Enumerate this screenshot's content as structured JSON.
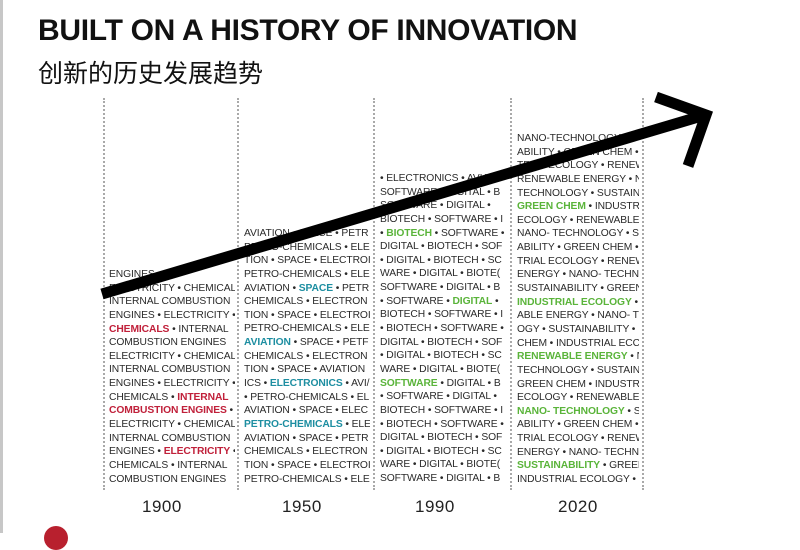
{
  "title": "BUILT ON A HISTORY OF INNOVATION",
  "subtitle": "创新的历史发展趋势",
  "years": [
    "1900",
    "1950",
    "1990",
    "2020"
  ],
  "colors": {
    "red": "#c0203a",
    "teal": "#1d8ea1",
    "green": "#5ab43a",
    "text": "#2a2a2a"
  },
  "columns": [
    {
      "lines": [
        [
          {
            "t": "ENGINES"
          }
        ],
        [
          {
            "t": "ELECTRICITY • CHEMICAL"
          }
        ],
        [
          {
            "t": "INTERNAL COMBUSTION"
          }
        ],
        [
          {
            "t": "ENGINES • ELECTRICITY •"
          }
        ],
        [
          {
            "t": "CHEMICALS",
            "h": "red"
          },
          {
            "t": " • INTERNAL"
          }
        ],
        [
          {
            "t": "COMBUSTION ENGINES"
          }
        ],
        [
          {
            "t": "ELECTRICITY • CHEMICAL"
          }
        ],
        [
          {
            "t": "INTERNAL COMBUSTION"
          }
        ],
        [
          {
            "t": "ENGINES • ELECTRICITY •"
          }
        ],
        [
          {
            "t": "CHEMICALS • "
          },
          {
            "t": "INTERNAL",
            "h": "red"
          }
        ],
        [
          {
            "t": "COMBUSTION ENGINES",
            "h": "red"
          },
          {
            "t": " •"
          }
        ],
        [
          {
            "t": "ELECTRICITY • CHEMICAL"
          }
        ],
        [
          {
            "t": "INTERNAL COMBUSTION"
          }
        ],
        [
          {
            "t": "ENGINES • "
          },
          {
            "t": "ELECTRICITY",
            "h": "red"
          },
          {
            "t": " •"
          }
        ],
        [
          {
            "t": "CHEMICALS • INTERNAL"
          }
        ],
        [
          {
            "t": "COMBUSTION ENGINES"
          }
        ]
      ]
    },
    {
      "lines": [
        [
          {
            "t": "AVIATION • SPACE • PETR"
          }
        ],
        [
          {
            "t": "PETRO-CHEMICALS • ELECTRON"
          }
        ],
        [
          {
            "t": "TION • SPACE • ELECTROI"
          }
        ],
        [
          {
            "t": "PETRO-CHEMICALS • ELE"
          }
        ],
        [
          {
            "t": "AVIATION • "
          },
          {
            "t": "SPACE",
            "h": "teal"
          },
          {
            "t": " • PETR"
          }
        ],
        [
          {
            "t": "CHEMICALS • ELECTRON"
          }
        ],
        [
          {
            "t": "TION • SPACE • ELECTROI"
          }
        ],
        [
          {
            "t": "PETRO-CHEMICALS • ELE"
          }
        ],
        [
          {
            "t": "AVIATION",
            "h": "teal"
          },
          {
            "t": " • SPACE • PETF"
          }
        ],
        [
          {
            "t": "CHEMICALS • ELECTRON"
          }
        ],
        [
          {
            "t": "TION • SPACE • AVIATION"
          }
        ],
        [
          {
            "t": "ICS • "
          },
          {
            "t": "ELECTRONICS",
            "h": "teal"
          },
          {
            "t": " • AVI/"
          }
        ],
        [
          {
            "t": "• PETRO-CHEMICALS • EL"
          }
        ],
        [
          {
            "t": "AVIATION • SPACE • ELEC"
          }
        ],
        [
          {
            "t": "PETRO-CHEMICALS",
            "h": "teal"
          },
          {
            "t": " • ELE"
          }
        ],
        [
          {
            "t": "AVIATION • SPACE • PETR"
          }
        ],
        [
          {
            "t": "CHEMICALS • ELECTRON"
          }
        ],
        [
          {
            "t": "TION • SPACE • ELECTROI"
          }
        ],
        [
          {
            "t": "PETRO-CHEMICALS • ELE"
          }
        ]
      ]
    },
    {
      "lines": [
        [
          {
            "t": "• ELECTRONICS • AVIAT"
          }
        ],
        [
          {
            "t": "SOFTWARE • DIGITAL • B"
          }
        ],
        [
          {
            "t": "SOFTWARE • DIGITAL •"
          }
        ],
        [
          {
            "t": "BIOTECH • SOFTWARE • I"
          }
        ],
        [
          {
            "t": "• "
          },
          {
            "t": "BIOTECH",
            "h": "green"
          },
          {
            "t": " • SOFTWARE •"
          }
        ],
        [
          {
            "t": "DIGITAL • BIOTECH • SOF"
          }
        ],
        [
          {
            "t": "• DIGITAL • BIOTECH • SC"
          }
        ],
        [
          {
            "t": "WARE • DIGITAL • BIOTE("
          }
        ],
        [
          {
            "t": "SOFTWARE • DIGITAL • B"
          }
        ],
        [
          {
            "t": "• SOFTWARE • "
          },
          {
            "t": "DIGITAL",
            "h": "green"
          },
          {
            "t": " •"
          }
        ],
        [
          {
            "t": "BIOTECH • SOFTWARE • I"
          }
        ],
        [
          {
            "t": "• BIOTECH • SOFTWARE •"
          }
        ],
        [
          {
            "t": "DIGITAL • BIOTECH • SOF"
          }
        ],
        [
          {
            "t": "• DIGITAL • BIOTECH • SC"
          }
        ],
        [
          {
            "t": "WARE • DIGITAL • BIOTE("
          }
        ],
        [
          {
            "t": "SOFTWARE",
            "h": "green"
          },
          {
            "t": " • DIGITAL • B"
          }
        ],
        [
          {
            "t": "• SOFTWARE • DIGITAL •"
          }
        ],
        [
          {
            "t": "BIOTECH • SOFTWARE • I"
          }
        ],
        [
          {
            "t": "• BIOTECH • SOFTWARE •"
          }
        ],
        [
          {
            "t": "DIGITAL • BIOTECH • SOF"
          }
        ],
        [
          {
            "t": "• DIGITAL • BIOTECH • SC"
          }
        ],
        [
          {
            "t": "WARE • DIGITAL • BIOTE("
          }
        ],
        [
          {
            "t": "SOFTWARE • DIGITAL • B"
          }
        ]
      ]
    },
    {
      "lines": [
        [
          {
            "t": "NANO-TECHNOLOGY •"
          }
        ],
        [
          {
            "t": "ABILITY • GREEN CHEM •"
          }
        ],
        [
          {
            "t": "TRIAL ECOLOGY • RENEWABLE"
          }
        ],
        [
          {
            "t": "RENEWABLE ENERGY • N"
          }
        ],
        [
          {
            "t": "TECHNOLOGY • SUSTAIN"
          }
        ],
        [
          {
            "t": "GREEN CHEM",
            "h": "green"
          },
          {
            "t": " • INDUSTR"
          }
        ],
        [
          {
            "t": "ECOLOGY • RENEWABLE"
          }
        ],
        [
          {
            "t": "NANO- TECHNOLOGY • S"
          }
        ],
        [
          {
            "t": "ABILITY • GREEN CHEM •"
          }
        ],
        [
          {
            "t": "TRIAL ECOLOGY • RENEW"
          }
        ],
        [
          {
            "t": "ENERGY • NANO- TECHN"
          }
        ],
        [
          {
            "t": "SUSTAINABILITY • GREEN"
          }
        ],
        [
          {
            "t": "INDUSTRIAL ECOLOGY",
            "h": "green"
          },
          {
            "t": " • I"
          }
        ],
        [
          {
            "t": "ABLE ENERGY • NANO- T"
          }
        ],
        [
          {
            "t": "OGY • SUSTAINABILITY •"
          }
        ],
        [
          {
            "t": "CHEM • INDUSTRIAL ECC"
          }
        ],
        [
          {
            "t": "RENEWABLE ENERGY",
            "h": "green"
          },
          {
            "t": " • N"
          }
        ],
        [
          {
            "t": "TECHNOLOGY • SUSTAIN"
          }
        ],
        [
          {
            "t": "GREEN CHEM • INDUSTR"
          }
        ],
        [
          {
            "t": "ECOLOGY • RENEWABLE"
          }
        ],
        [
          {
            "t": "NANO- TECHNOLOGY",
            "h": "green"
          },
          {
            "t": " • S"
          }
        ],
        [
          {
            "t": "ABILITY • GREEN CHEM •"
          }
        ],
        [
          {
            "t": "TRIAL ECOLOGY • RENEW"
          }
        ],
        [
          {
            "t": "ENERGY • NANO- TECHN"
          }
        ],
        [
          {
            "t": "SUSTAINABILITY",
            "h": "green"
          },
          {
            "t": " • GREEN"
          }
        ],
        [
          {
            "t": "INDUSTRIAL ECOLOGY • I"
          }
        ]
      ]
    }
  ]
}
